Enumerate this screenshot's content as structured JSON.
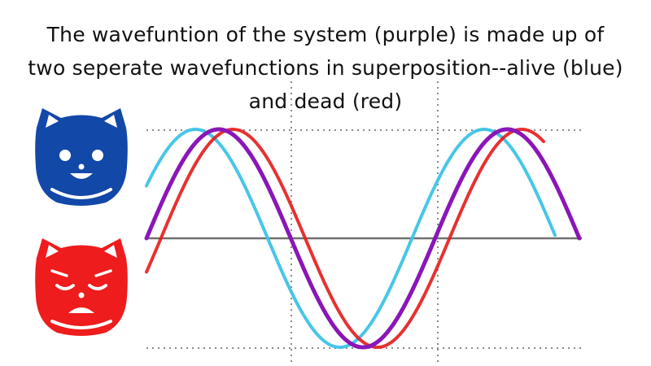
{
  "caption": {
    "lines": [
      "The wavefuntion of the system (purple) is made up of",
      "two seperate wavefunctions in superposition--alive (blue)",
      "and dead (red)"
    ]
  },
  "colors": {
    "alive": "#3dc3e6",
    "dead": "#e41b1b",
    "system": "#8a16b8",
    "axis": "#707070",
    "grid": "#8a8a8a",
    "cat_alive": "#1248a8",
    "cat_dead": "#ee1c1c"
  },
  "icons": {
    "alive_cat": "happy-cat-face-icon",
    "dead_cat": "sad-cat-face-icon"
  },
  "waves": [
    {
      "name": "alive",
      "color_key": "alive",
      "phase_shift_cycles": 0.08
    },
    {
      "name": "dead",
      "color_key": "dead",
      "phase_shift_cycles": -0.05
    },
    {
      "name": "system",
      "color_key": "system",
      "phase_shift_cycles": 0
    }
  ]
}
